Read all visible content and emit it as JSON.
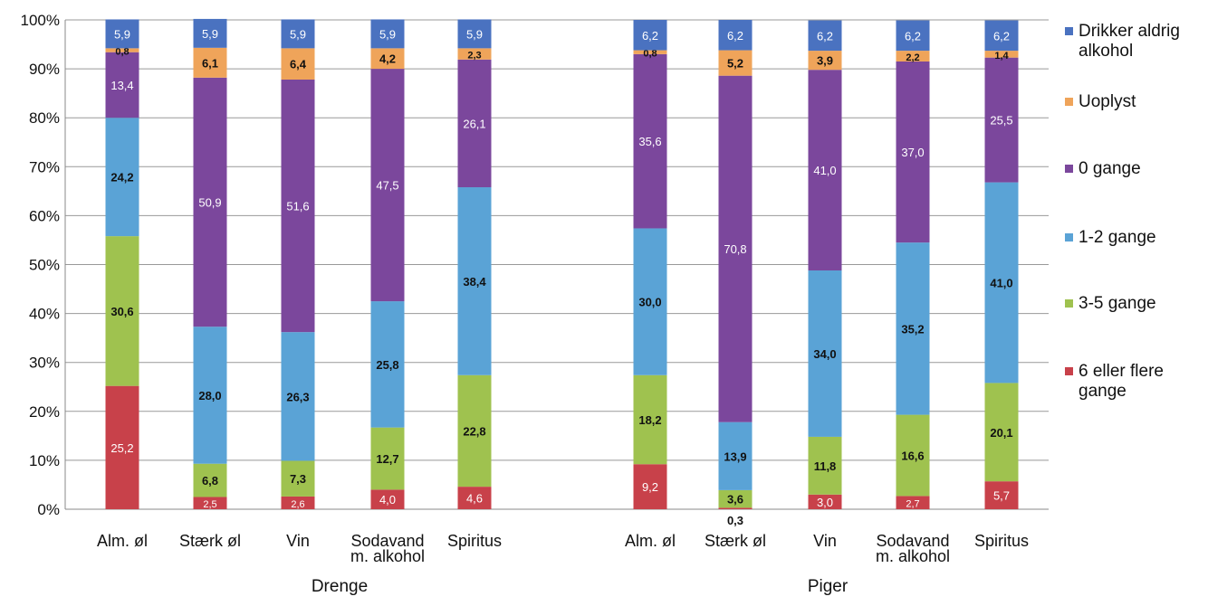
{
  "chart_data": {
    "type": "bar",
    "stacked": true,
    "percent_stacked": true,
    "grid": true,
    "legend_position": "right",
    "y_ticks": [
      "0%",
      "10%",
      "20%",
      "30%",
      "40%",
      "50%",
      "60%",
      "70%",
      "80%",
      "90%",
      "100%"
    ],
    "ylim": [
      0,
      100
    ],
    "groups": [
      {
        "label": "Drenge",
        "categories": [
          "Alm. øl",
          "Stærk øl",
          "Vin",
          "Sodavand m. alkohol",
          "Spiritus"
        ],
        "category_lines": [
          [
            "Alm. øl"
          ],
          [
            "Stærk øl"
          ],
          [
            "Vin"
          ],
          [
            "Sodavand",
            "m. alkohol"
          ],
          [
            "Spiritus"
          ]
        ],
        "series_values": {
          "6 eller flere gange": [
            25.2,
            2.5,
            2.6,
            4.0,
            4.6
          ],
          "3-5 gange": [
            30.6,
            6.8,
            7.3,
            12.7,
            22.8
          ],
          "1-2 gange": [
            24.2,
            28.0,
            26.3,
            25.8,
            38.4
          ],
          "0 gange": [
            13.4,
            50.9,
            51.6,
            47.5,
            26.1
          ],
          "Uoplyst": [
            0.8,
            6.1,
            6.4,
            4.2,
            2.3
          ],
          "Drikker aldrig alkohol": [
            5.9,
            5.9,
            5.9,
            5.9,
            5.9
          ]
        },
        "value_labels": {
          "6 eller flere gange": [
            "25,2",
            "2,5",
            "2,6",
            "4,0",
            "4,6"
          ],
          "3-5 gange": [
            "30,6",
            "6,8",
            "7,3",
            "12,7",
            "22,8"
          ],
          "1-2 gange": [
            "24,2",
            "28,0",
            "26,3",
            "25,8",
            "38,4"
          ],
          "0 gange": [
            "13,4",
            "50,9",
            "51,6",
            "47,5",
            "26,1"
          ],
          "Uoplyst": [
            "0,8",
            "6,1",
            "6,4",
            "4,2",
            "2,3"
          ],
          "Drikker aldrig alkohol": [
            "5,9",
            "5,9",
            "5,9",
            "5,9",
            "5,9"
          ]
        }
      },
      {
        "label": "Piger",
        "categories": [
          "Alm. øl",
          "Stærk øl",
          "Vin",
          "Sodavand m. alkohol",
          "Spiritus"
        ],
        "category_lines": [
          [
            "Alm. øl"
          ],
          [
            "Stærk øl"
          ],
          [
            "Vin"
          ],
          [
            "Sodavand",
            "m. alkohol"
          ],
          [
            "Spiritus"
          ]
        ],
        "series_values": {
          "6 eller flere gange": [
            9.2,
            0.3,
            3.0,
            2.7,
            5.7
          ],
          "3-5 gange": [
            18.2,
            3.6,
            11.8,
            16.6,
            20.1
          ],
          "1-2 gange": [
            30.0,
            13.9,
            34.0,
            35.2,
            41.0
          ],
          "0 gange": [
            35.6,
            70.8,
            41.0,
            37.0,
            25.5
          ],
          "Uoplyst": [
            0.8,
            5.2,
            3.9,
            2.2,
            1.4
          ],
          "Drikker aldrig alkohol": [
            6.2,
            6.2,
            6.2,
            6.2,
            6.2
          ]
        },
        "value_labels": {
          "6 eller flere gange": [
            "9,2",
            "0,3",
            "3,0",
            "2,7",
            "5,7"
          ],
          "3-5 gange": [
            "18,2",
            "3,6",
            "11,8",
            "16,6",
            "20,1"
          ],
          "1-2 gange": [
            "30,0",
            "13,9",
            "34,0",
            "35,2",
            "41,0"
          ],
          "0 gange": [
            "35,6",
            "70,8",
            "41,0",
            "37,0",
            "25,5"
          ],
          "Uoplyst": [
            "0,8",
            "5,2",
            "3,9",
            "2,2",
            "1,4"
          ],
          "Drikker aldrig alkohol": [
            "6,2",
            "6,2",
            "6,2",
            "6,2",
            "6,2"
          ]
        }
      }
    ],
    "series": [
      {
        "name": "6 eller flere gange",
        "color": "#c8414a",
        "label_color": "#ffffff"
      },
      {
        "name": "3-5 gange",
        "color": "#9fc24f",
        "label_color": "#111111"
      },
      {
        "name": "1-2 gange",
        "color": "#5aa3d6",
        "label_color": "#111111"
      },
      {
        "name": "0 gange",
        "color": "#7b479c",
        "label_color": "#ffffff"
      },
      {
        "name": "Uoplyst",
        "color": "#efa45a",
        "label_color": "#111111"
      },
      {
        "name": "Drikker aldrig alkohol",
        "color": "#4a72c0",
        "label_color": "#ffffff"
      }
    ],
    "legend": [
      {
        "label": "Drikker aldrig alkohol",
        "color": "#4a72c0"
      },
      {
        "label": "Uoplyst",
        "color": "#efa45a"
      },
      {
        "label": "0 gange",
        "color": "#7b479c"
      },
      {
        "label": "1-2 gange",
        "color": "#5aa3d6"
      },
      {
        "label": "3-5 gange",
        "color": "#9fc24f"
      },
      {
        "label": "6 eller flere gange",
        "color": "#c8414a"
      }
    ],
    "outside_labels": [
      {
        "group": 1,
        "category": 1,
        "text": "0,3"
      }
    ]
  }
}
